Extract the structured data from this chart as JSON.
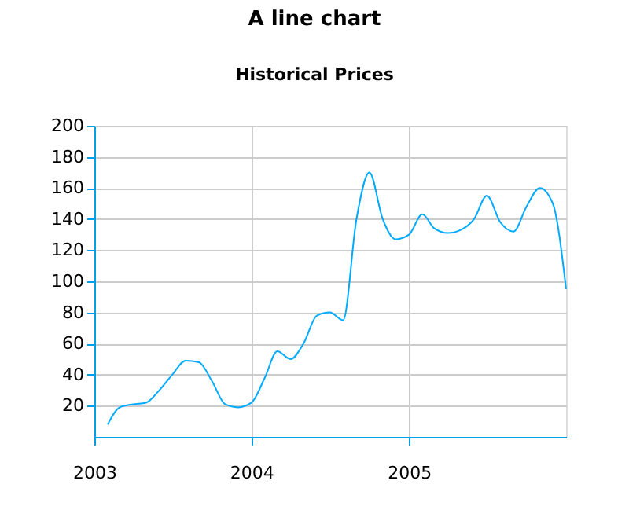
{
  "chart_data": {
    "type": "line",
    "title": "Historical Prices",
    "annotations": [
      "A line chart"
    ],
    "x": [
      "2003-02",
      "2003-03",
      "2003-04",
      "2003-05",
      "2003-06",
      "2003-07",
      "2003-08",
      "2003-09",
      "2003-10",
      "2003-11",
      "2003-12",
      "2004-01",
      "2004-02",
      "2004-03",
      "2004-04",
      "2004-05",
      "2004-06",
      "2004-07",
      "2004-08",
      "2004-09",
      "2004-10",
      "2004-11",
      "2004-12",
      "2005-01",
      "2005-02",
      "2005-03",
      "2005-04",
      "2005-05",
      "2005-06",
      "2005-07",
      "2005-08",
      "2005-09",
      "2005-10",
      "2005-11",
      "2005-12",
      "2006-01"
    ],
    "series": [
      {
        "color": "#00aaff",
        "values": [
          8,
          19,
          21,
          22,
          30,
          40,
          49,
          48,
          36,
          21,
          19,
          22,
          38,
          55,
          50,
          60,
          78,
          80,
          75,
          140,
          170,
          140,
          127,
          130,
          143,
          134,
          131,
          133,
          140,
          155,
          138,
          132,
          148,
          160,
          150,
          95
        ]
      }
    ],
    "xlim": [
      "2003",
      "2006"
    ],
    "xticks": [
      "2003",
      "2004",
      "2005"
    ],
    "ylim": [
      0,
      200
    ],
    "yticks": [
      20,
      40,
      60,
      80,
      100,
      120,
      140,
      160,
      180,
      200
    ],
    "grid": true,
    "line_style": "solid",
    "marker": "none"
  }
}
